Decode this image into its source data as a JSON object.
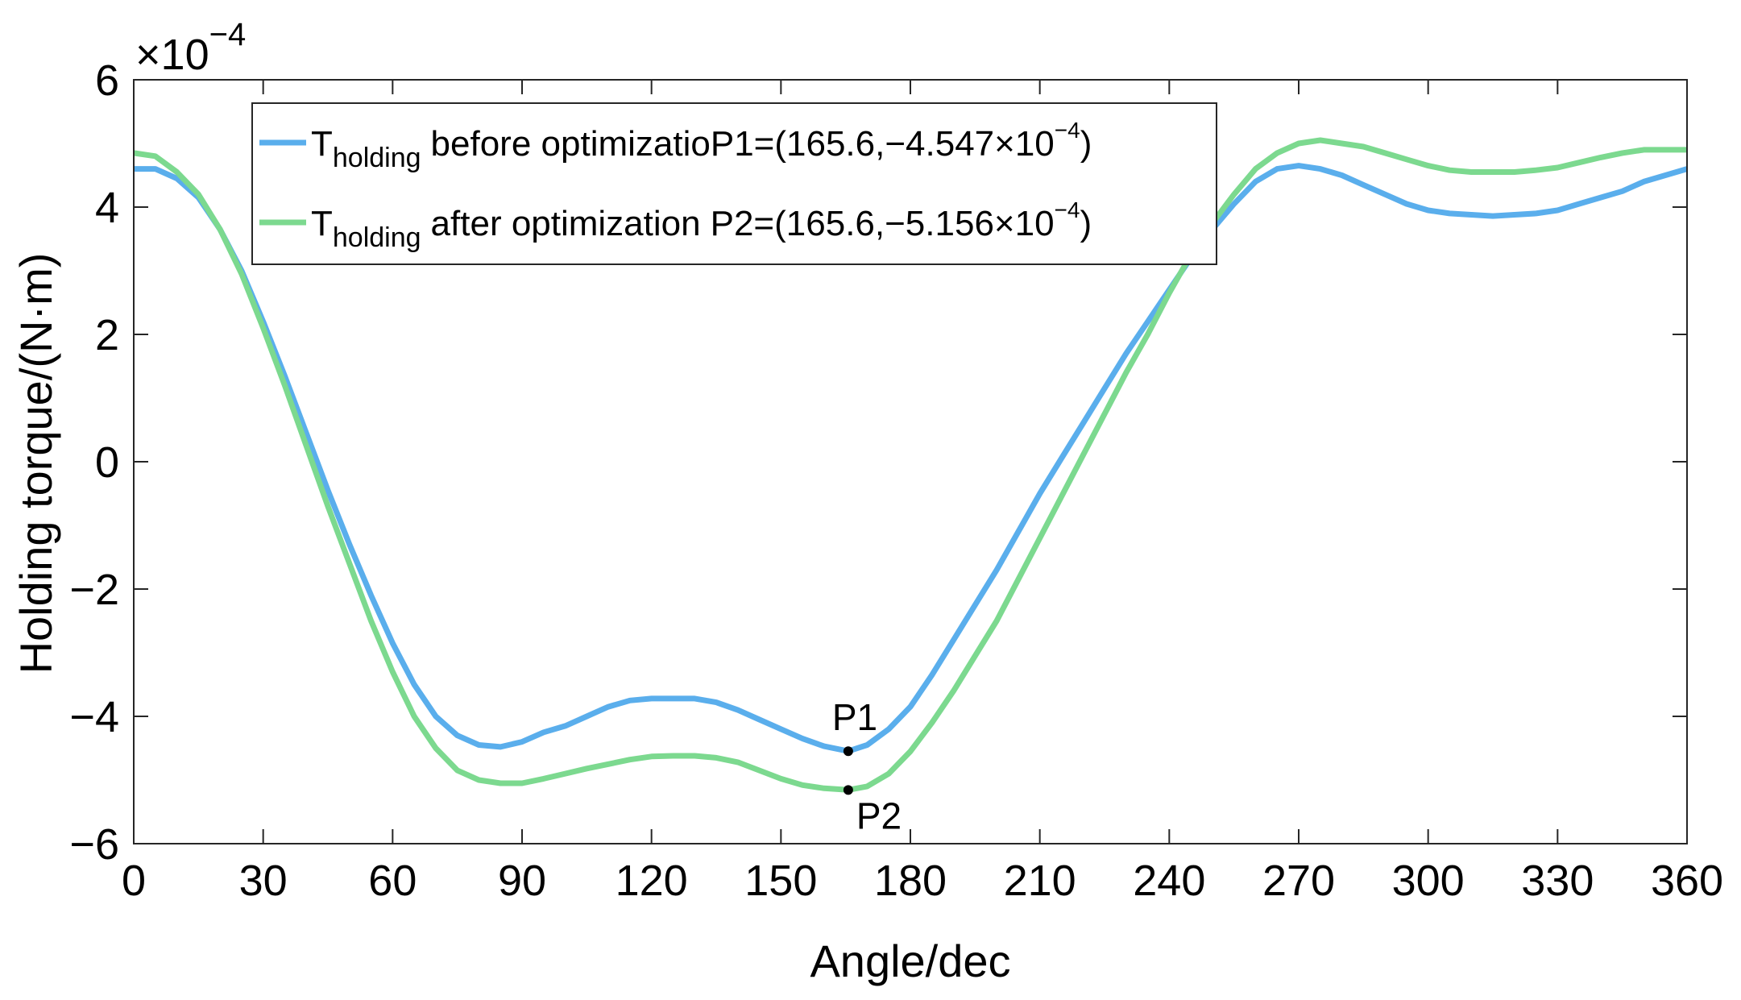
{
  "chart_data": {
    "type": "line",
    "xlabel": "Angle/dec",
    "ylabel": "Holding torque/(N·m)",
    "y_multiplier": {
      "base": "×10",
      "exponent": "−4"
    },
    "xlim": [
      0,
      360
    ],
    "ylim": [
      -6,
      6
    ],
    "xticks": [
      0,
      30,
      60,
      90,
      120,
      150,
      180,
      210,
      240,
      270,
      300,
      330,
      360
    ],
    "xtick_labels": [
      "0",
      "30",
      "60",
      "90",
      "120",
      "150",
      "180",
      "210",
      "240",
      "270",
      "300",
      "330",
      "360"
    ],
    "yticks": [
      -6,
      -4,
      -2,
      0,
      2,
      4,
      6
    ],
    "ytick_labels": [
      "−6",
      "−4",
      "−2",
      "0",
      "2",
      "4",
      "6"
    ],
    "grid": false,
    "legend_position": "top-left",
    "series": [
      {
        "name": "T holding before optimization",
        "legend_main": "T",
        "legend_sub": "holding",
        "legend_text": "before optimizatio",
        "color": "#5aaeec",
        "x": [
          0,
          5,
          10,
          15,
          20,
          25,
          30,
          35,
          40,
          45,
          50,
          55,
          60,
          65,
          70,
          75,
          80,
          85,
          90,
          95,
          100,
          105,
          110,
          115,
          120,
          125,
          130,
          135,
          140,
          145,
          150,
          155,
          160,
          165.6,
          170,
          175,
          180,
          185,
          190,
          195,
          200,
          205,
          210,
          215,
          220,
          225,
          230,
          235,
          240,
          245,
          250,
          255,
          260,
          265,
          270,
          275,
          280,
          285,
          290,
          295,
          300,
          305,
          310,
          315,
          320,
          325,
          330,
          335,
          340,
          345,
          350,
          355,
          360
        ],
        "values": [
          4.6,
          4.6,
          4.45,
          4.15,
          3.65,
          3.0,
          2.2,
          1.35,
          0.45,
          -0.45,
          -1.3,
          -2.1,
          -2.85,
          -3.5,
          -4.0,
          -4.3,
          -4.45,
          -4.48,
          -4.4,
          -4.25,
          -4.15,
          -4.0,
          -3.85,
          -3.75,
          -3.72,
          -3.72,
          -3.72,
          -3.78,
          -3.9,
          -4.05,
          -4.2,
          -4.35,
          -4.47,
          -4.547,
          -4.45,
          -4.2,
          -3.85,
          -3.35,
          -2.8,
          -2.25,
          -1.7,
          -1.1,
          -0.5,
          0.05,
          0.6,
          1.15,
          1.7,
          2.2,
          2.7,
          3.2,
          3.65,
          4.05,
          4.4,
          4.6,
          4.65,
          4.6,
          4.5,
          4.35,
          4.2,
          4.05,
          3.95,
          3.9,
          3.88,
          3.86,
          3.88,
          3.9,
          3.95,
          4.05,
          4.15,
          4.25,
          4.4,
          4.5,
          4.6
        ]
      },
      {
        "name": "T holding after optimization",
        "legend_main": "T",
        "legend_sub": "holding",
        "legend_text": "after optimization",
        "color": "#7cd98f",
        "x": [
          0,
          5,
          10,
          15,
          20,
          25,
          30,
          35,
          40,
          45,
          50,
          55,
          60,
          65,
          70,
          75,
          80,
          85,
          90,
          95,
          100,
          105,
          110,
          115,
          120,
          125,
          130,
          135,
          140,
          145,
          150,
          155,
          160,
          165.6,
          170,
          175,
          180,
          185,
          190,
          195,
          200,
          205,
          210,
          215,
          220,
          225,
          230,
          235,
          240,
          245,
          250,
          255,
          260,
          265,
          270,
          275,
          280,
          285,
          290,
          295,
          300,
          305,
          310,
          315,
          320,
          325,
          330,
          335,
          340,
          345,
          350,
          355,
          360
        ],
        "values": [
          4.85,
          4.8,
          4.55,
          4.2,
          3.65,
          2.95,
          2.1,
          1.2,
          0.25,
          -0.7,
          -1.6,
          -2.5,
          -3.3,
          -4.0,
          -4.5,
          -4.85,
          -5.0,
          -5.05,
          -5.05,
          -4.98,
          -4.9,
          -4.82,
          -4.75,
          -4.68,
          -4.63,
          -4.62,
          -4.62,
          -4.65,
          -4.72,
          -4.85,
          -4.98,
          -5.08,
          -5.13,
          -5.156,
          -5.1,
          -4.9,
          -4.55,
          -4.1,
          -3.6,
          -3.05,
          -2.5,
          -1.85,
          -1.2,
          -0.55,
          0.1,
          0.75,
          1.4,
          2.0,
          2.65,
          3.25,
          3.75,
          4.2,
          4.6,
          4.85,
          5.0,
          5.05,
          5.0,
          4.95,
          4.85,
          4.75,
          4.65,
          4.58,
          4.55,
          4.55,
          4.55,
          4.58,
          4.62,
          4.7,
          4.78,
          4.85,
          4.9,
          4.9,
          4.9
        ]
      }
    ],
    "annotations": [
      {
        "label": "P1",
        "x": 165.6,
        "y": -4.547,
        "legend_text": "P1=(165.6,−4.547×10",
        "legend_sup": "−4",
        "legend_close": ")"
      },
      {
        "label": "P2",
        "x": 165.6,
        "y": -5.156,
        "legend_text": "P2=(165.6,−5.156×10",
        "legend_sup": "−4",
        "legend_close": ")"
      }
    ]
  }
}
